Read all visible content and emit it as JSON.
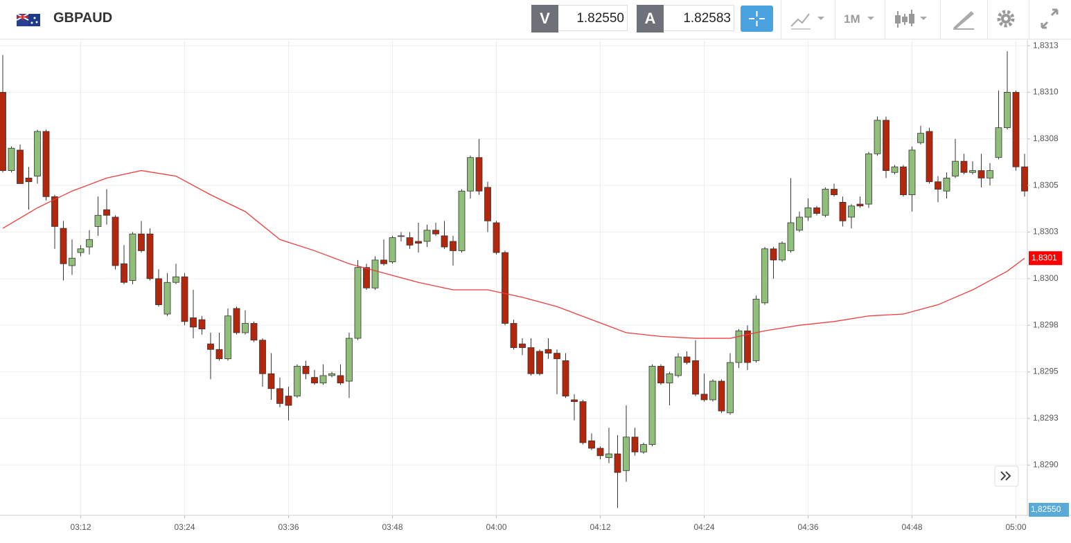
{
  "header": {
    "symbol": "GBPAUD",
    "sell": {
      "label": "V",
      "price": "1.82550"
    },
    "buy": {
      "label": "A",
      "price": "1.82583"
    },
    "timeframe": "1M"
  },
  "chart_data": {
    "type": "candlestick",
    "x": [
      "03:03",
      "03:04",
      "03:05",
      "03:06",
      "03:07",
      "03:08",
      "03:09",
      "03:10",
      "03:11",
      "03:12",
      "03:13",
      "03:14",
      "03:15",
      "03:16",
      "03:17",
      "03:18",
      "03:19",
      "03:20",
      "03:21",
      "03:22",
      "03:23",
      "03:24",
      "03:25",
      "03:26",
      "03:27",
      "03:28",
      "03:29",
      "03:30",
      "03:31",
      "03:32",
      "03:33",
      "03:34",
      "03:35",
      "03:36",
      "03:37",
      "03:38",
      "03:39",
      "03:40",
      "03:41",
      "03:42",
      "03:43",
      "03:44",
      "03:45",
      "03:46",
      "03:47",
      "03:48",
      "03:49",
      "03:50",
      "03:51",
      "03:52",
      "03:53",
      "03:54",
      "03:55",
      "03:56",
      "03:57",
      "03:58",
      "03:59",
      "04:00",
      "04:01",
      "04:02",
      "04:03",
      "04:04",
      "04:05",
      "04:06",
      "04:07",
      "04:08",
      "04:09",
      "04:10",
      "04:11",
      "04:12",
      "04:13",
      "04:14",
      "04:15",
      "04:16",
      "04:17",
      "04:18",
      "04:19",
      "04:20",
      "04:21",
      "04:22",
      "04:23",
      "04:24",
      "04:25",
      "04:26",
      "04:27",
      "04:28",
      "04:29",
      "04:30",
      "04:31",
      "04:32",
      "04:33",
      "04:34",
      "04:35",
      "04:36",
      "04:37",
      "04:38",
      "04:39",
      "04:40",
      "04:41",
      "04:42",
      "04:43",
      "04:44",
      "04:45",
      "04:46",
      "04:47",
      "04:48",
      "04:49",
      "04:50",
      "04:51",
      "04:52",
      "04:53",
      "04:54",
      "04:55",
      "04:56",
      "04:57",
      "04:58",
      "04:59",
      "05:00",
      "05:01"
    ],
    "open": [
      1.831,
      1.83058,
      1.83069,
      1.83054,
      1.83055,
      1.83079,
      1.83044,
      1.83027,
      1.83007,
      1.83014,
      1.83017,
      1.83028,
      1.83037,
      1.83033,
      1.83008,
      1.82999,
      1.83024,
      1.83024,
      1.83,
      1.82981,
      1.82998,
      1.83001,
      1.82979,
      1.82978,
      1.82965,
      1.82962,
      1.82957,
      1.82984,
      1.82971,
      1.82976,
      1.82967,
      1.82949,
      1.82941,
      1.82937,
      1.82937,
      1.82953,
      1.82947,
      1.82944,
      1.82948,
      1.82948,
      1.82945,
      1.82968,
      1.83006,
      1.82995,
      1.8301,
      1.83009,
      1.83023,
      1.83022,
      1.8302,
      1.8302,
      1.83026,
      1.83023,
      1.8302,
      1.83015,
      1.83047,
      1.83065,
      1.83049,
      1.8303,
      1.83014,
      1.82976,
      1.82965,
      1.82963,
      1.82961,
      1.82962,
      1.8296,
      1.82956,
      1.82935,
      1.82934,
      1.82913,
      1.82909,
      1.82904,
      1.82906,
      1.82897,
      1.82915,
      1.82907,
      1.82911,
      1.82953,
      1.82944,
      1.82948,
      1.82958,
      1.82956,
      1.82938,
      1.82935,
      1.82945,
      1.82928,
      1.82955,
      1.82972,
      1.82956,
      1.82987,
      1.83016,
      1.8301,
      1.83015,
      1.83026,
      1.83033,
      1.83038,
      1.83034,
      1.83048,
      1.83041,
      1.83033,
      1.8304,
      1.8304,
      1.83067,
      1.83085,
      1.83057,
      1.8306,
      1.83045,
      1.83073,
      1.83079,
      1.83052,
      1.83047,
      1.83055,
      1.83063,
      1.83057,
      1.83058,
      1.83054,
      1.83065,
      1.83081,
      1.831,
      1.8306
    ],
    "high": [
      1.8312,
      1.83071,
      1.83072,
      1.8306,
      1.8308,
      1.8308,
      1.83045,
      1.83031,
      1.83021,
      1.83018,
      1.83026,
      1.83044,
      1.83048,
      1.83034,
      1.83018,
      1.83025,
      1.83031,
      1.83027,
      1.83005,
      1.83003,
      1.83008,
      1.83003,
      1.82994,
      1.8298,
      1.82971,
      1.82971,
      1.82984,
      1.82985,
      1.82983,
      1.82977,
      1.82968,
      1.8296,
      1.82947,
      1.82942,
      1.82954,
      1.82956,
      1.82951,
      1.82954,
      1.8295,
      1.82954,
      1.82971,
      1.8301,
      1.83008,
      1.83012,
      1.83021,
      1.83023,
      1.83025,
      1.83025,
      1.8303,
      1.83029,
      1.8303,
      1.83031,
      1.83023,
      1.83048,
      1.83066,
      1.83075,
      1.83052,
      1.83031,
      1.83015,
      1.82978,
      1.82968,
      1.82968,
      1.82962,
      1.82968,
      1.82962,
      1.8296,
      1.82938,
      1.82935,
      1.82917,
      1.8291,
      1.8292,
      1.82916,
      1.82932,
      1.8292,
      1.82912,
      1.82954,
      1.82954,
      1.8295,
      1.8296,
      1.82961,
      1.82967,
      1.82949,
      1.82946,
      1.82946,
      1.8296,
      1.82973,
      1.82975,
      1.82991,
      1.83017,
      1.83017,
      1.8302,
      1.83054,
      1.83036,
      1.83043,
      1.83039,
      1.83049,
      1.83051,
      1.83044,
      1.8304,
      1.83044,
      1.83068,
      1.83087,
      1.83087,
      1.83061,
      1.83061,
      1.83071,
      1.83082,
      1.83081,
      1.83055,
      1.83057,
      1.83075,
      1.83067,
      1.83063,
      1.83067,
      1.83062,
      1.83101,
      1.83122,
      1.83101,
      1.83067
    ],
    "low": [
      1.83057,
      1.83057,
      1.83051,
      1.83037,
      1.83051,
      1.83042,
      1.83016,
      1.82999,
      1.83002,
      1.83012,
      1.83013,
      1.83023,
      1.83029,
      1.83005,
      1.82997,
      1.82997,
      1.83014,
      1.82999,
      1.82985,
      1.8298,
      1.82997,
      1.82975,
      1.82968,
      1.8297,
      1.82946,
      1.82956,
      1.82956,
      1.8297,
      1.8297,
      1.82966,
      1.82942,
      1.82935,
      1.82931,
      1.82924,
      1.82936,
      1.82946,
      1.82943,
      1.82943,
      1.82947,
      1.82943,
      1.82936,
      1.82967,
      1.82994,
      1.82994,
      1.83007,
      1.83008,
      1.8302,
      1.83016,
      1.83014,
      1.83017,
      1.83023,
      1.83016,
      1.83007,
      1.83014,
      1.83043,
      1.83045,
      1.83025,
      1.83013,
      1.82975,
      1.82962,
      1.82959,
      1.82948,
      1.82948,
      1.82957,
      1.82938,
      1.82936,
      1.82924,
      1.82911,
      1.82908,
      1.82903,
      1.82901,
      1.82877,
      1.82891,
      1.82905,
      1.82906,
      1.8291,
      1.82943,
      1.82932,
      1.82947,
      1.82954,
      1.82937,
      1.82934,
      1.82934,
      1.82928,
      1.82927,
      1.82952,
      1.82951,
      1.82955,
      1.82986,
      1.83,
      1.83009,
      1.83014,
      1.83025,
      1.83031,
      1.83034,
      1.83033,
      1.83044,
      1.83028,
      1.83027,
      1.83038,
      1.83038,
      1.83066,
      1.83054,
      1.83056,
      1.83044,
      1.83036,
      1.83072,
      1.83051,
      1.83041,
      1.83043,
      1.83054,
      1.83056,
      1.83056,
      1.83049,
      1.8305,
      1.83064,
      1.8308,
      1.83058,
      1.83044
    ],
    "close": [
      1.83058,
      1.8307,
      1.83051,
      1.83052,
      1.83079,
      1.83044,
      1.83028,
      1.83008,
      1.83011,
      1.83016,
      1.83021,
      1.83034,
      1.83034,
      1.83007,
      1.82998,
      1.83024,
      1.83015,
      1.83,
      1.82986,
      1.82998,
      1.83001,
      1.82977,
      1.82974,
      1.82973,
      1.82962,
      1.82957,
      1.8298,
      1.82971,
      1.82976,
      1.82967,
      1.82949,
      1.82941,
      1.82933,
      1.82932,
      1.82953,
      1.82949,
      1.82944,
      1.82948,
      1.82949,
      1.82944,
      1.82968,
      1.83006,
      1.82995,
      1.8301,
      1.83008,
      1.83022,
      1.83023,
      1.83018,
      1.83019,
      1.83026,
      1.83024,
      1.83017,
      1.83015,
      1.83047,
      1.83065,
      1.83047,
      1.83031,
      1.83014,
      1.82976,
      1.82963,
      1.82963,
      1.82949,
      1.82949,
      1.8296,
      1.82957,
      1.82937,
      1.82934,
      1.82912,
      1.82909,
      1.82905,
      1.82906,
      1.82896,
      1.82915,
      1.82907,
      1.82911,
      1.82953,
      1.82944,
      1.82949,
      1.82958,
      1.82955,
      1.82938,
      1.82935,
      1.82945,
      1.82929,
      1.82955,
      1.82972,
      1.82955,
      1.82989,
      1.83016,
      1.8301,
      1.83019,
      1.8303,
      1.83033,
      1.83038,
      1.83035,
      1.83048,
      1.83045,
      1.83031,
      1.83039,
      1.83039,
      1.83067,
      1.83085,
      1.83058,
      1.8306,
      1.83045,
      1.83069,
      1.83078,
      1.83052,
      1.83048,
      1.83054,
      1.83063,
      1.83057,
      1.83058,
      1.83054,
      1.83058,
      1.83081,
      1.831,
      1.8306,
      1.83047
    ],
    "up_color": "#8fbf78",
    "down_color": "#b3270d",
    "ylim": [
      1.82873,
      1.83128
    ],
    "yticks": [
      {
        "value": 1.83125,
        "label": "1,8313"
      },
      {
        "value": 1.831,
        "label": "1,8310"
      },
      {
        "value": 1.83075,
        "label": "1,8308"
      },
      {
        "value": 1.8305,
        "label": "1,8305"
      },
      {
        "value": 1.83025,
        "label": "1,8303"
      },
      {
        "value": 1.83,
        "label": "1,8300"
      },
      {
        "value": 1.82975,
        "label": "1,8298"
      },
      {
        "value": 1.8295,
        "label": "1,8295"
      },
      {
        "value": 1.82925,
        "label": "1,8293"
      },
      {
        "value": 1.829,
        "label": "1,8290"
      }
    ],
    "xticks": [
      "03:12",
      "03:24",
      "03:36",
      "03:48",
      "04:00",
      "04:12",
      "04:24",
      "04:36",
      "04:48",
      "05:00"
    ],
    "grid": true,
    "moving_average": {
      "color": "#f03c3c",
      "x": [
        "03:03",
        "03:07",
        "03:11",
        "03:15",
        "03:19",
        "03:23",
        "03:27",
        "03:31",
        "03:35",
        "03:39",
        "03:43",
        "03:47",
        "03:51",
        "03:55",
        "03:59",
        "04:03",
        "04:07",
        "04:11",
        "04:15",
        "04:19",
        "04:23",
        "04:27",
        "04:31",
        "04:35",
        "04:39",
        "04:43",
        "04:47",
        "04:51",
        "04:55",
        "04:59",
        "05:01"
      ],
      "values": [
        1.83027,
        1.83038,
        1.83047,
        1.83054,
        1.83058,
        1.83055,
        1.83045,
        1.83036,
        1.83021,
        1.83015,
        1.83008,
        1.83003,
        1.82998,
        1.82994,
        1.82994,
        1.8299,
        1.82985,
        1.82978,
        1.82971,
        1.82969,
        1.82968,
        1.82968,
        1.82972,
        1.82975,
        1.82977,
        1.8298,
        1.82981,
        1.82986,
        1.82994,
        1.83004,
        1.83011
      ],
      "last_label": "1,8301"
    },
    "price_tag": "1,82550"
  }
}
